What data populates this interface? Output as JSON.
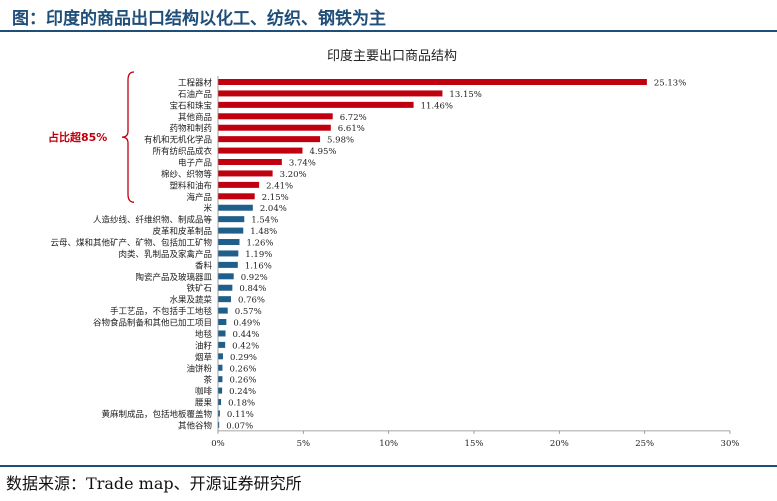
{
  "header": {
    "figure_label": "图：",
    "caption": "印度的商品出口结构以化工、纺织、钢铁为主"
  },
  "footer": {
    "source_label": "数据来源：",
    "source_text": "Trade map、开源证券研究所"
  },
  "colors": {
    "highlight_bar": "#c0000e",
    "other_bar": "#1f5f8b",
    "brand": "#1f4e79",
    "annotation": "#c0000e"
  },
  "annotation": {
    "text": "占比超85%"
  },
  "chart_data": {
    "type": "bar",
    "orientation": "horizontal",
    "title": "印度主要出口商品结构",
    "xlabel": "",
    "ylabel": "",
    "xlim": [
      0,
      30
    ],
    "xticks": [
      0,
      5,
      10,
      15,
      20,
      25,
      30
    ],
    "xtick_labels": [
      "0%",
      "5%",
      "10%",
      "15%",
      "20%",
      "25%",
      "30%"
    ],
    "grid": false,
    "highlight_count": 11,
    "categories": [
      "工程器材",
      "石油产品",
      "宝石和珠宝",
      "其他商品",
      "药物和制药",
      "有机和无机化学品",
      "所有纺织品成衣",
      "电子产品",
      "棉纱、织物等",
      "塑料和油布",
      "海产品",
      "米",
      "人造纱线、纤维织物、制成品等",
      "皮革和皮革制品",
      "云母、煤和其他矿产、矿物、包括加工矿物",
      "肉类、乳制品及家禽产品",
      "香料",
      "陶瓷产品及玻璃器皿",
      "铁矿石",
      "水果及蔬菜",
      "手工艺品，不包括手工地毯",
      "谷物食品制备和其他已加工项目",
      "地毯",
      "油籽",
      "烟草",
      "油饼粉",
      "茶",
      "咖啡",
      "腰果",
      "黄麻制成品，包括地板覆盖物",
      "其他谷物"
    ],
    "values": [
      25.13,
      13.15,
      11.46,
      6.72,
      6.61,
      5.98,
      4.95,
      3.74,
      3.2,
      2.41,
      2.15,
      2.04,
      1.54,
      1.48,
      1.26,
      1.19,
      1.16,
      0.92,
      0.84,
      0.76,
      0.57,
      0.49,
      0.44,
      0.42,
      0.29,
      0.26,
      0.26,
      0.24,
      0.18,
      0.11,
      0.07
    ],
    "value_labels": [
      "25.13%",
      "13.15%",
      "11.46%",
      "6.72%",
      "6.61%",
      "5.98%",
      "4.95%",
      "3.74%",
      "3.20%",
      "2.41%",
      "2.15%",
      "2.04%",
      "1.54%",
      "1.48%",
      "1.26%",
      "1.19%",
      "1.16%",
      "0.92%",
      "0.84%",
      "0.76%",
      "0.57%",
      "0.49%",
      "0.44%",
      "0.42%",
      "0.29%",
      "0.26%",
      "0.26%",
      "0.24%",
      "0.18%",
      "0.11%",
      "0.07%"
    ]
  }
}
